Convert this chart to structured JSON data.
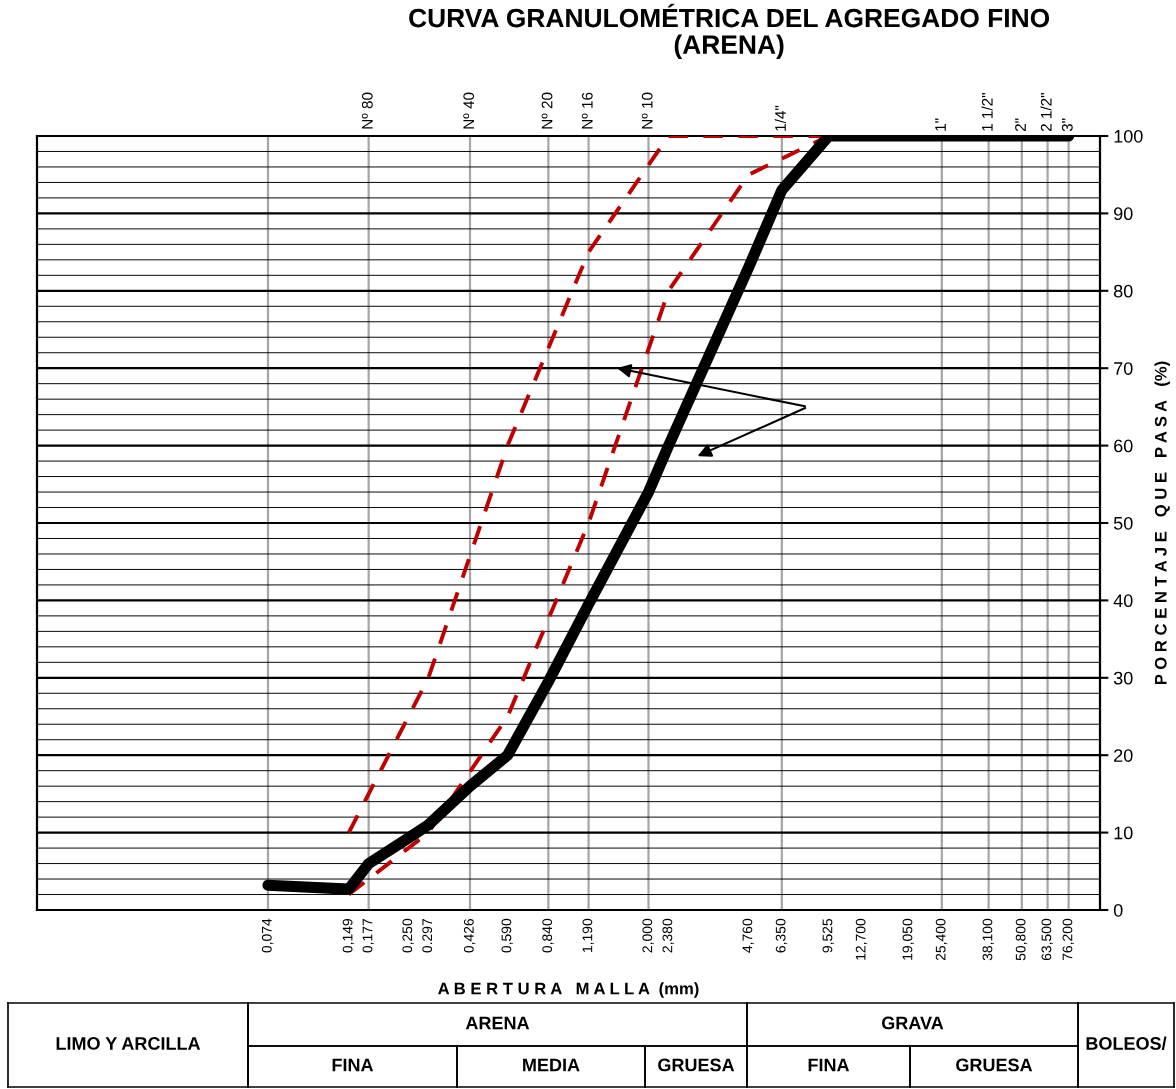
{
  "chart_data": {
    "type": "line",
    "title": "CURVA GRANULOMÉTRICA DEL AGREGADO FINO (ARENA)",
    "xlabel": "A B E R T U R A   M A L L A  (mm)",
    "ylabel": "P O R C E N T A J E   Q U E   P A S A   (%)",
    "log": "x",
    "grid": "y",
    "legend": false,
    "marker": "none",
    "xlim": [
      0.01,
      100
    ],
    "xticks": [
      {
        "value": 0.074,
        "label": "0,074"
      },
      {
        "value": 0.149,
        "label": "0,149"
      },
      {
        "value": 0.177,
        "label": "0,177"
      },
      {
        "value": 0.25,
        "label": "0,250"
      },
      {
        "value": 0.297,
        "label": "0.297"
      },
      {
        "value": 0.426,
        "label": "0,426"
      },
      {
        "value": 0.59,
        "label": "0,590"
      },
      {
        "value": 0.84,
        "label": "0,840"
      },
      {
        "value": 1.19,
        "label": "1,190"
      },
      {
        "value": 2.0,
        "label": "2,000"
      },
      {
        "value": 2.38,
        "label": "2,380"
      },
      {
        "value": 4.76,
        "label": "4,760"
      },
      {
        "value": 6.35,
        "label": "6,350"
      },
      {
        "value": 9.525,
        "label": "9,525"
      },
      {
        "value": 12.7,
        "label": "12,700"
      },
      {
        "value": 19.05,
        "label": "19,050"
      },
      {
        "value": 25.4,
        "label": "25,400"
      },
      {
        "value": 38.1,
        "label": "38,100"
      },
      {
        "value": 50.8,
        "label": "50,800"
      },
      {
        "value": 63.5,
        "label": "63,500"
      },
      {
        "value": 76.2,
        "label": "76,200"
      }
    ],
    "ref_lines": [
      {
        "axis": "x",
        "value": 0.074,
        "label": null,
        "color": "#a6a6a6"
      },
      {
        "axis": "x",
        "value": 0.177,
        "label": "Nº 80",
        "color": "#a6a6a6"
      },
      {
        "axis": "x",
        "value": 0.426,
        "label": "Nº 40",
        "color": "#a6a6a6"
      },
      {
        "axis": "x",
        "value": 0.84,
        "label": "Nº 20",
        "color": "#a6a6a6"
      },
      {
        "axis": "x",
        "value": 1.19,
        "label": "Nº 16",
        "color": "#a6a6a6"
      },
      {
        "axis": "x",
        "value": 2.0,
        "label": "Nº 10",
        "color": "#a6a6a6"
      },
      {
        "axis": "x",
        "value": 6.35,
        "label": null,
        "color": "#a6a6a6"
      },
      {
        "axis": "x",
        "value": 25.4,
        "label": null,
        "color": "#a6a6a6"
      },
      {
        "axis": "x",
        "value": 38.1,
        "label": null,
        "color": "#a6a6a6"
      },
      {
        "axis": "x",
        "value": 50.8,
        "label": null,
        "color": "#a6a6a6"
      },
      {
        "axis": "x",
        "value": 63.5,
        "label": null,
        "color": "#a6a6a6"
      },
      {
        "axis": "x",
        "value": 76.2,
        "label": null,
        "color": "#a6a6a6"
      }
    ],
    "ylim": [
      0,
      100
    ],
    "yticks": [
      0,
      {
        "value": 2,
        "label": null
      },
      {
        "value": 4,
        "label": null
      },
      {
        "value": 6,
        "label": null
      },
      {
        "value": 8,
        "label": null
      },
      10,
      {
        "value": 12,
        "label": null
      },
      {
        "value": 14,
        "label": null
      },
      {
        "value": 16,
        "label": null
      },
      {
        "value": 18,
        "label": null
      },
      20,
      {
        "value": 22,
        "label": null
      },
      {
        "value": 24,
        "label": null
      },
      {
        "value": 26,
        "label": null
      },
      {
        "value": 28,
        "label": null
      },
      30,
      {
        "value": 32,
        "label": null
      },
      {
        "value": 34,
        "label": null
      },
      {
        "value": 36,
        "label": null
      },
      {
        "value": 38,
        "label": null
      },
      40,
      {
        "value": 42,
        "label": null
      },
      {
        "value": 44,
        "label": null
      },
      {
        "value": 46,
        "label": null
      },
      {
        "value": 48,
        "label": null
      },
      50,
      {
        "value": 52,
        "label": null
      },
      {
        "value": 54,
        "label": null
      },
      {
        "value": 56,
        "label": null
      },
      {
        "value": 58,
        "label": null
      },
      60,
      {
        "value": 62,
        "label": null
      },
      {
        "value": 64,
        "label": null
      },
      {
        "value": 66,
        "label": null
      },
      {
        "value": 68,
        "label": null
      },
      70,
      {
        "value": 72,
        "label": null
      },
      {
        "value": 74,
        "label": null
      },
      {
        "value": 76,
        "label": null
      },
      {
        "value": 78,
        "label": null
      },
      80,
      {
        "value": 82,
        "label": null
      },
      {
        "value": 84,
        "label": null
      },
      {
        "value": 86,
        "label": null
      },
      {
        "value": 88,
        "label": null
      },
      90,
      {
        "value": 92,
        "label": null
      },
      {
        "value": 94,
        "label": null
      },
      {
        "value": 96,
        "label": null
      },
      {
        "value": 98,
        "label": null
      },
      100
    ],
    "series": [
      {
        "color": "#c00000",
        "line_style": "dashed",
        "x": [
          0.149,
          0.297,
          0.59,
          1.19,
          2.38,
          4.76,
          9.525
        ],
        "values": [
          10,
          30,
          60,
          85,
          100,
          100,
          100
        ]
      },
      {
        "color": "#c00000",
        "line_style": "dashed",
        "x": [
          0.149,
          0.297,
          0.59,
          1.19,
          2.38,
          4.76,
          9.525
        ],
        "values": [
          2,
          10,
          25,
          50,
          80,
          95,
          100
        ]
      },
      {
        "color": "#000000",
        "line_style": "solid",
        "x": [
          0.074,
          0.149,
          0.177,
          0.25,
          0.297,
          0.426,
          0.59,
          0.84,
          1.19,
          2.0,
          2.38,
          4.76,
          6.35,
          9.525,
          12.7,
          19.05,
          25.4,
          38.1,
          50.8,
          63.5,
          76.2
        ],
        "values": [
          3.2,
          2.7,
          6,
          9.3,
          11,
          16,
          20,
          29.5,
          39.5,
          54,
          60,
          83,
          93,
          100,
          100,
          100,
          100,
          100,
          100,
          100,
          100
        ]
      }
    ],
    "annotations": [
      {
        "text": "1/4\"",
        "x": 6.35,
        "y": 100
      },
      {
        "text": "1\"",
        "x": 25.4,
        "y": 100
      },
      {
        "text": "1 1/2\"",
        "x": 38.1,
        "y": 100
      },
      {
        "text": "2\"",
        "x": 50.8,
        "y": 100
      },
      {
        "text": "2 1/2\"",
        "x": 63.5,
        "y": 100
      },
      {
        "text": "3\"",
        "x": 76.2,
        "y": 100
      },
      "LIMO Y ARCILLA",
      "ARENA",
      "GRAVA",
      "BOLEOS/",
      "FINA",
      "MEDIA",
      "GRUESA",
      "FINA",
      "GRUESA"
    ]
  }
}
